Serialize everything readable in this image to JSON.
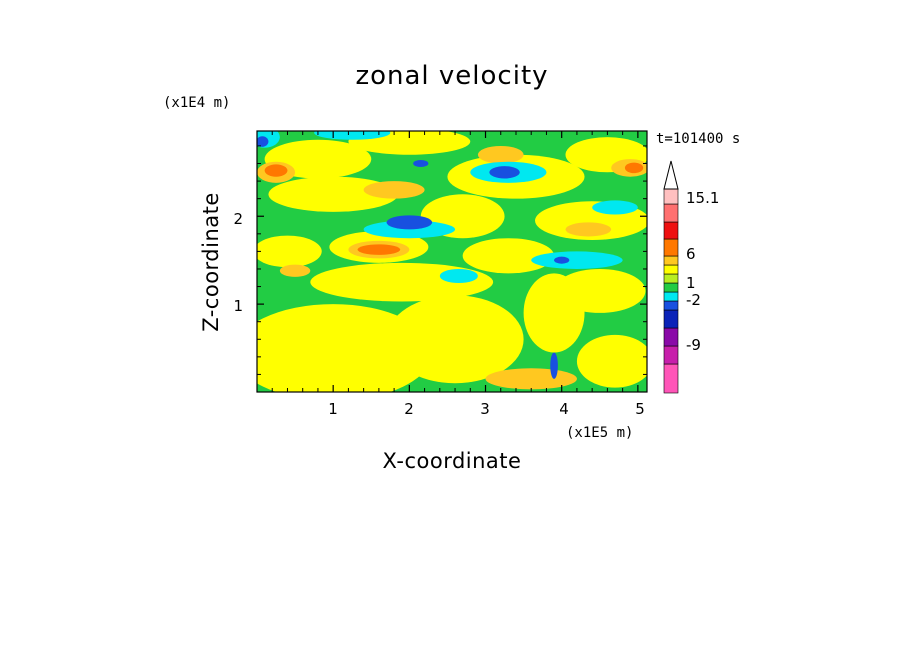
{
  "chart_data": {
    "type": "heatmap",
    "title": "zonal velocity",
    "xlabel": "X-coordinate",
    "ylabel": "Z-coordinate",
    "x_unit": "(x1E5 m)",
    "y_unit": "(x1E4 m)",
    "time_label": "t=101400 s",
    "xlim": [
      0,
      5.12
    ],
    "ylim": [
      0,
      2.97
    ],
    "x_ticks": [
      "1",
      "2",
      "3",
      "4",
      "5"
    ],
    "y_ticks": [
      "1",
      "2"
    ],
    "colorbar": {
      "labels": [
        "15.1",
        "6",
        "1",
        "-2",
        "-9"
      ],
      "levels": [
        {
          "color": "#ff55b8"
        },
        {
          "color": "#c71fab"
        },
        {
          "color": "#8a0aa8"
        },
        {
          "color": "#0b23b8"
        },
        {
          "color": "#1850e0"
        },
        {
          "color": "#00e8f0"
        },
        {
          "color": "#22cc44"
        },
        {
          "color": "#b8ee22"
        },
        {
          "color": "#ffff00"
        },
        {
          "color": "#ffc820"
        },
        {
          "color": "#ff7800"
        },
        {
          "color": "#ee1010"
        },
        {
          "color": "#ff7070"
        },
        {
          "color": "#ffc0c0"
        }
      ]
    }
  },
  "colors": {
    "background": "#ffffff",
    "contour_fill": "#22cc44",
    "positive_weak": "#ffff00",
    "positive": "#ffc820",
    "positive_strong": "#ff7800",
    "negative_weak": "#00e8f0",
    "negative": "#1850e0"
  }
}
